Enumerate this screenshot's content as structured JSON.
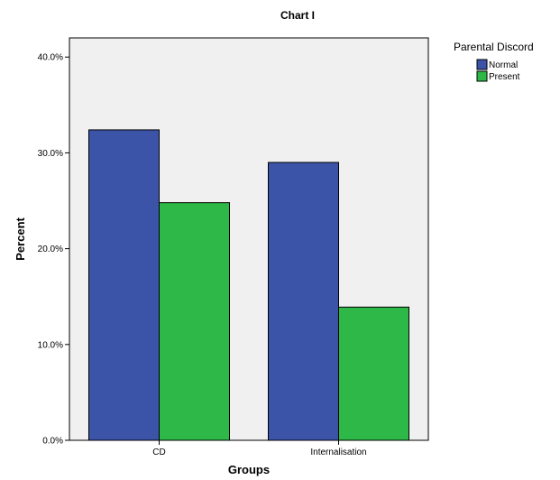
{
  "chart_data": {
    "type": "bar",
    "title": "Chart I",
    "xlabel": "Groups",
    "ylabel": "Percent",
    "categories": [
      "CD",
      "Internalisation"
    ],
    "series": [
      {
        "name": "Normal",
        "values": [
          32.4,
          29.0
        ],
        "color": "#3c54a8"
      },
      {
        "name": "Present",
        "values": [
          24.8,
          13.9
        ],
        "color": "#2eb848"
      }
    ],
    "ylim": [
      0,
      42
    ],
    "yticks": [
      0,
      10,
      20,
      30,
      40
    ],
    "ytick_labels": [
      "0.0%",
      "10.0%",
      "20.0%",
      "30.0%",
      "40.0%"
    ],
    "legend": {
      "title": "Parental Discord",
      "placement": "right"
    },
    "plot_background": "#f0f0f0",
    "grid": false
  }
}
